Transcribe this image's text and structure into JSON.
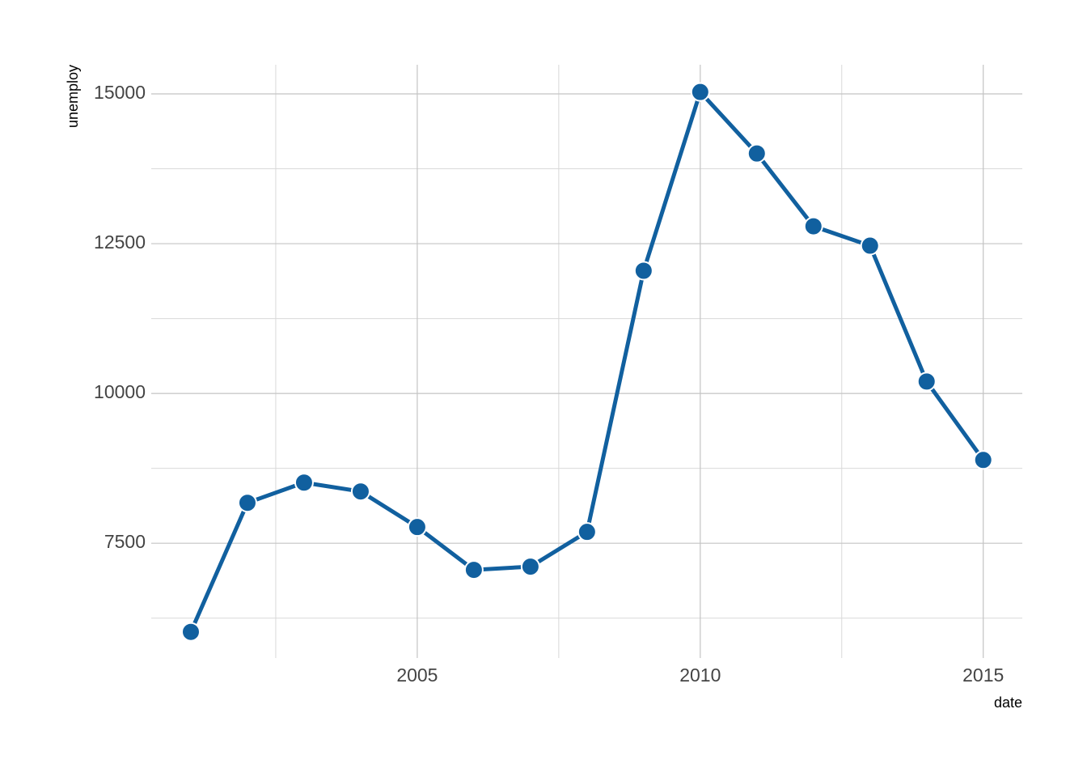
{
  "chart_data": {
    "type": "line",
    "x": [
      2001,
      2002,
      2003,
      2004,
      2005,
      2006,
      2007,
      2008,
      2009,
      2010,
      2011,
      2012,
      2013,
      2014,
      2015
    ],
    "series": [
      {
        "color": "#11609f",
        "values": [
          6020,
          8175,
          8512,
          8364,
          7770,
          7055,
          7109,
          7689,
          12048,
          15031,
          14005,
          12790,
          12466,
          10199,
          8890
        ]
      }
    ],
    "xlabel": "date",
    "ylabel": "unemploy",
    "xlim": [
      2000.3,
      2015.69
    ],
    "xticks": [
      2005,
      2010,
      2015
    ],
    "minor_xticks": [
      2002.5,
      2007.5,
      2012.5
    ],
    "ylim": [
      5584,
      15486
    ],
    "yticks": [
      7500,
      10000,
      12500,
      15000
    ],
    "minor_yticks": [
      6250,
      8750,
      11250,
      13750
    ],
    "grid": true
  }
}
